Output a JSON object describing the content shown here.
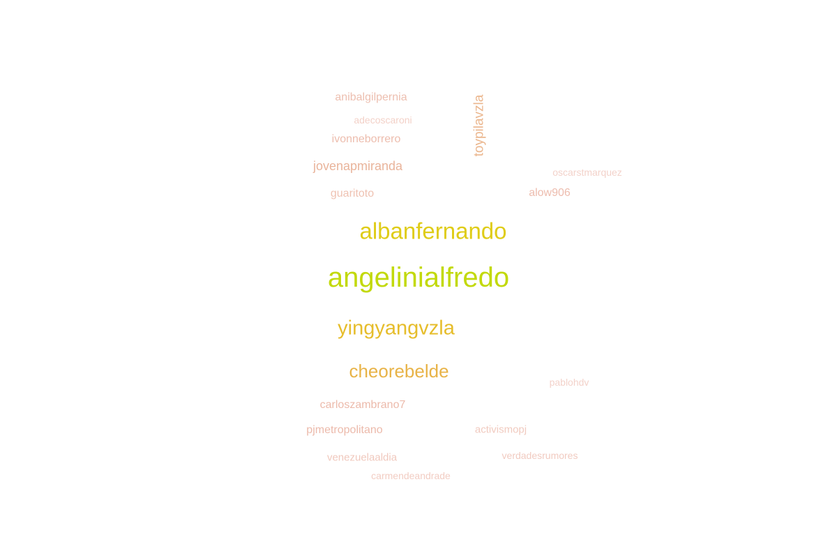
{
  "words": [
    {
      "text": "angelinialfredo",
      "color": "#c2d90b"
    },
    {
      "text": "albanfernando",
      "color": "#dfcc17"
    },
    {
      "text": "yingyangvzla",
      "color": "#e6bd2b"
    },
    {
      "text": "cheorebelde",
      "color": "#e8b347"
    },
    {
      "text": "toypilavzla",
      "color": "#ebb78f"
    },
    {
      "text": "jovenapmiranda",
      "color": "#e9b49b"
    },
    {
      "text": "anibalgilpernia",
      "color": "#edbfb0"
    },
    {
      "text": "ivonneborrero",
      "color": "#edbdae"
    },
    {
      "text": "guaritoto",
      "color": "#efc2b2"
    },
    {
      "text": "alow906",
      "color": "#edbcae"
    },
    {
      "text": "carloszambrano7",
      "color": "#ecbaab"
    },
    {
      "text": "pjmetropolitano",
      "color": "#ecbaab"
    },
    {
      "text": "activismopj",
      "color": "#f1cbc0"
    },
    {
      "text": "venezuelaaldia",
      "color": "#f0c8bd"
    },
    {
      "text": "verdadesrumores",
      "color": "#f1cbc1"
    },
    {
      "text": "carmendeandrade",
      "color": "#f2cdc3"
    },
    {
      "text": "adecoscaroni",
      "color": "#f3d1c8"
    },
    {
      "text": "oscarstmarquez",
      "color": "#f3d2ca"
    },
    {
      "text": "pablohdv",
      "color": "#f3d2ca"
    }
  ]
}
